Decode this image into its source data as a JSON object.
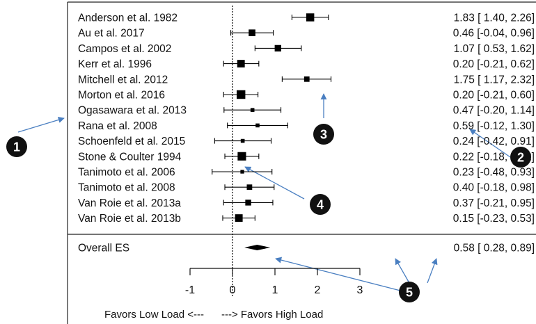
{
  "chart_data": {
    "type": "forest",
    "studies": [
      {
        "label": "Anderson et al. 1982",
        "es": 1.83,
        "lo": 1.4,
        "hi": 2.26,
        "ci_text": "1.83 [ 1.40, 2.26]",
        "weight": 3
      },
      {
        "label": "Au et al. 2017",
        "es": 0.46,
        "lo": -0.04,
        "hi": 0.96,
        "ci_text": "0.46 [-0.04, 0.96]",
        "weight": 2.4
      },
      {
        "label": "Campos et al. 2002",
        "es": 1.07,
        "lo": 0.53,
        "hi": 1.62,
        "ci_text": "1.07 [ 0.53, 1.62]",
        "weight": 2.3
      },
      {
        "label": "Kerr et al. 1996",
        "es": 0.2,
        "lo": -0.21,
        "hi": 0.62,
        "ci_text": "0.20 [-0.21, 0.62]",
        "weight": 2.8
      },
      {
        "label": "Mitchell et al. 2012",
        "es": 1.75,
        "lo": 1.17,
        "hi": 2.32,
        "ci_text": "1.75 [ 1.17, 2.32]",
        "weight": 1.8
      },
      {
        "label": "Morton et al. 2016",
        "es": 0.2,
        "lo": -0.21,
        "hi": 0.6,
        "ci_text": "0.20 [-0.21, 0.60]",
        "weight": 3.3
      },
      {
        "label": "Ogasawara et al. 2013",
        "es": 0.47,
        "lo": -0.2,
        "hi": 1.14,
        "ci_text": "0.47 [-0.20, 1.14]",
        "weight": 1.1
      },
      {
        "label": "Rana et al. 2008",
        "es": 0.59,
        "lo": -0.12,
        "hi": 1.3,
        "ci_text": "0.59 [-0.12, 1.30]",
        "weight": 1.1
      },
      {
        "label": "Schoenfeld et al. 2015",
        "es": 0.24,
        "lo": -0.42,
        "hi": 0.91,
        "ci_text": "0.24 [-0.42, 0.91]",
        "weight": 1.1
      },
      {
        "label": "Stone & Coulter 1994",
        "es": 0.22,
        "lo": -0.18,
        "hi": 0.62,
        "ci_text": "0.22 [-0.18, 0.62]",
        "weight": 3.2
      },
      {
        "label": "Tanimoto et al. 2006",
        "es": 0.23,
        "lo": -0.48,
        "hi": 0.93,
        "ci_text": "0.23 [-0.48, 0.93]",
        "weight": 1.0
      },
      {
        "label": "Tanimoto et al. 2008",
        "es": 0.4,
        "lo": -0.18,
        "hi": 0.98,
        "ci_text": "0.40 [-0.18, 0.98]",
        "weight": 1.8
      },
      {
        "label": "Van Roie et al. 2013a",
        "es": 0.37,
        "lo": -0.21,
        "hi": 0.95,
        "ci_text": "0.37 [-0.21, 0.95]",
        "weight": 2.0
      },
      {
        "label": "Van Roie et al. 2013b",
        "es": 0.15,
        "lo": -0.23,
        "hi": 0.53,
        "ci_text": "0.15 [-0.23, 0.53]",
        "weight": 2.8
      }
    ],
    "overall": {
      "label": "Overall ES",
      "es": 0.58,
      "lo": 0.28,
      "hi": 0.89,
      "ci_text": "0.58 [ 0.28, 0.89]"
    },
    "xlim": [
      -1,
      3
    ],
    "xticks": [
      "-1",
      "0",
      "1",
      "2",
      "3"
    ],
    "reference_line": 0,
    "xlabel": "Favors Low Load <---      ---> Favors High Load",
    "callouts": [
      "1",
      "2",
      "3",
      "4",
      "5"
    ],
    "colors": {
      "marker": "#000000",
      "arrow": "#4a7fc1",
      "callout": "#111111",
      "callout_text": "#ffffff"
    }
  }
}
